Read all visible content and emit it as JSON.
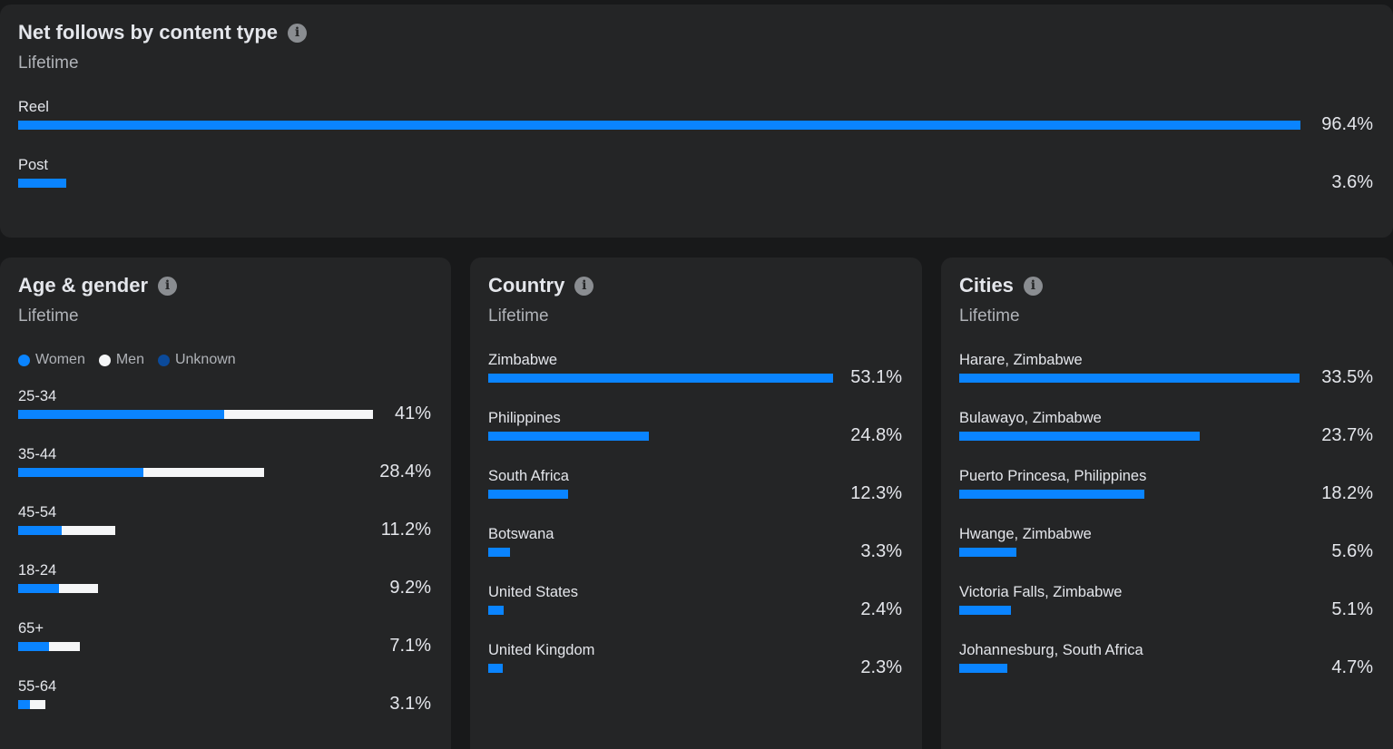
{
  "colors": {
    "women": "#0a84ff",
    "men": "#f5f6f7",
    "unknown": "#0b4a9a",
    "bar": "#0a84ff"
  },
  "follows": {
    "title": "Net follows by content type",
    "subtitle": "Lifetime",
    "info_icon": "info-icon",
    "rows": [
      {
        "label": "Reel",
        "value": "96.4%",
        "pct": 96.4
      },
      {
        "label": "Post",
        "value": "3.6%",
        "pct": 3.6
      }
    ]
  },
  "age_gender": {
    "title": "Age & gender",
    "subtitle": "Lifetime",
    "info_icon": "info-icon",
    "legend": [
      {
        "label": "Women",
        "key": "women"
      },
      {
        "label": "Men",
        "key": "men"
      },
      {
        "label": "Unknown",
        "key": "unknown"
      }
    ],
    "rows": [
      {
        "label": "25-34",
        "value": "41%",
        "pct": 41,
        "women_fraction": 0.58
      },
      {
        "label": "35-44",
        "value": "28.4%",
        "pct": 28.4,
        "women_fraction": 0.51
      },
      {
        "label": "45-54",
        "value": "11.2%",
        "pct": 11.2,
        "women_fraction": 0.45
      },
      {
        "label": "18-24",
        "value": "9.2%",
        "pct": 9.2,
        "women_fraction": 0.51
      },
      {
        "label": "65+",
        "value": "7.1%",
        "pct": 7.1,
        "women_fraction": 0.5
      },
      {
        "label": "55-64",
        "value": "3.1%",
        "pct": 3.1,
        "women_fraction": 0.43
      }
    ]
  },
  "country": {
    "title": "Country",
    "subtitle": "Lifetime",
    "info_icon": "info-icon",
    "rows": [
      {
        "label": "Zimbabwe",
        "value": "53.1%",
        "pct": 53.1
      },
      {
        "label": "Philippines",
        "value": "24.8%",
        "pct": 24.8
      },
      {
        "label": "South Africa",
        "value": "12.3%",
        "pct": 12.3
      },
      {
        "label": "Botswana",
        "value": "3.3%",
        "pct": 3.3
      },
      {
        "label": "United States",
        "value": "2.4%",
        "pct": 2.4
      },
      {
        "label": "United Kingdom",
        "value": "2.3%",
        "pct": 2.3
      }
    ]
  },
  "cities": {
    "title": "Cities",
    "subtitle": "Lifetime",
    "info_icon": "info-icon",
    "rows": [
      {
        "label": "Harare, Zimbabwe",
        "value": "33.5%",
        "pct": 33.5
      },
      {
        "label": "Bulawayo, Zimbabwe",
        "value": "23.7%",
        "pct": 23.7
      },
      {
        "label": "Puerto Princesa, Philippines",
        "value": "18.2%",
        "pct": 18.2
      },
      {
        "label": "Hwange, Zimbabwe",
        "value": "5.6%",
        "pct": 5.6
      },
      {
        "label": "Victoria Falls, Zimbabwe",
        "value": "5.1%",
        "pct": 5.1
      },
      {
        "label": "Johannesburg, South Africa",
        "value": "4.7%",
        "pct": 4.7
      }
    ]
  }
}
